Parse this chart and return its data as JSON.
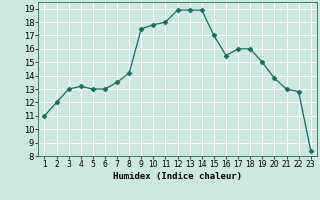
{
  "x": [
    1,
    2,
    3,
    4,
    5,
    6,
    7,
    8,
    9,
    10,
    11,
    12,
    13,
    14,
    15,
    16,
    17,
    18,
    19,
    20,
    21,
    22,
    23
  ],
  "y": [
    11,
    12,
    13,
    13.2,
    13,
    13,
    13.5,
    14.2,
    17.5,
    17.8,
    18,
    18.9,
    18.9,
    18.9,
    17,
    15.5,
    16,
    16,
    15,
    13.8,
    13,
    12.8,
    8.4
  ],
  "line_color": "#1a6b5a",
  "marker": "D",
  "marker_size": 2.5,
  "bg_color": "#cce8e0",
  "grid_color": "#ffffff",
  "xlabel": "Humidex (Indice chaleur)",
  "xlim": [
    0.5,
    23.5
  ],
  "ylim": [
    8,
    19.5
  ],
  "yticks": [
    8,
    9,
    10,
    11,
    12,
    13,
    14,
    15,
    16,
    17,
    18,
    19
  ],
  "xticks": [
    1,
    2,
    3,
    4,
    5,
    6,
    7,
    8,
    9,
    10,
    11,
    12,
    13,
    14,
    15,
    16,
    17,
    18,
    19,
    20,
    21,
    22,
    23
  ],
  "label_fontsize": 6.5,
  "tick_fontsize": 6.0
}
